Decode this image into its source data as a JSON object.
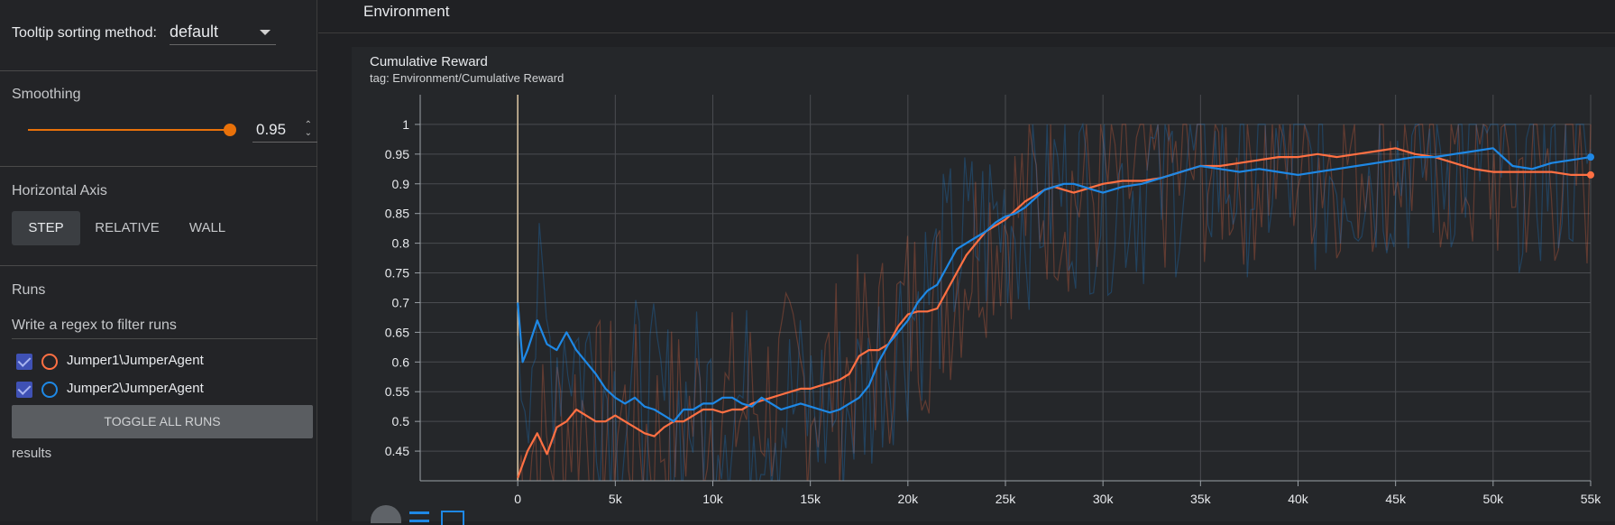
{
  "sidebar": {
    "tooltip_label": "Tooltip sorting method:",
    "tooltip_value": "default",
    "smoothing_label": "Smoothing",
    "smoothing_value": "0.95",
    "smoothing_fraction": 0.95,
    "horizontal_axis_label": "Horizontal Axis",
    "axis_options": [
      "STEP",
      "RELATIVE",
      "WALL"
    ],
    "axis_selected": "STEP",
    "runs_label": "Runs",
    "filter_placeholder": "Write a regex to filter runs",
    "runs": [
      {
        "name": "Jumper1\\JumperAgent",
        "color": "#ff7043",
        "checked": true
      },
      {
        "name": "Jumper2\\JumperAgent",
        "color": "#1e88e5",
        "checked": true
      }
    ],
    "toggle_label": "TOGGLE ALL RUNS",
    "results_label": "results"
  },
  "main": {
    "section_title": "Environment"
  },
  "chart_data": {
    "type": "line",
    "title": "Cumulative Reward",
    "subtitle": "tag: Environment/Cumulative Reward",
    "xlim": [
      -5000,
      55000
    ],
    "ylim": [
      0.4,
      1.05
    ],
    "x_ticks": [
      0,
      5000,
      10000,
      15000,
      20000,
      25000,
      30000,
      35000,
      40000,
      45000,
      50000,
      55000
    ],
    "x_tick_labels": [
      "0",
      "5k",
      "10k",
      "15k",
      "20k",
      "25k",
      "30k",
      "35k",
      "40k",
      "45k",
      "50k",
      "55k"
    ],
    "y_ticks": [
      0.45,
      0.5,
      0.55,
      0.6,
      0.65,
      0.7,
      0.75,
      0.8,
      0.85,
      0.9,
      0.95,
      1
    ],
    "y_tick_labels": [
      "0.45",
      "0.5",
      "0.55",
      "0.6",
      "0.65",
      "0.7",
      "0.75",
      "0.8",
      "0.85",
      "0.9",
      "0.95",
      "1"
    ],
    "grid": true,
    "series": [
      {
        "name": "Jumper1\\JumperAgent",
        "color": "#ff7043",
        "x": [
          0,
          500,
          1000,
          1500,
          2000,
          2500,
          3000,
          3500,
          4000,
          4500,
          5000,
          5500,
          6000,
          6500,
          7000,
          7500,
          8000,
          8500,
          9000,
          9500,
          10000,
          10500,
          11000,
          11500,
          12000,
          12500,
          13000,
          13500,
          14000,
          14500,
          15000,
          15500,
          16000,
          16500,
          17000,
          17500,
          18000,
          18500,
          19000,
          19500,
          20000,
          20500,
          21000,
          21500,
          22000,
          22500,
          23000,
          23500,
          24000,
          24500,
          25000,
          25500,
          26000,
          26500,
          27000,
          27500,
          28000,
          28500,
          29000,
          29500,
          30000,
          31000,
          32000,
          33000,
          34000,
          35000,
          36000,
          37000,
          38000,
          39000,
          40000,
          41000,
          42000,
          43000,
          44000,
          45000,
          46000,
          47000,
          48000,
          49000,
          50000,
          51000,
          52000,
          53000,
          54000,
          55000
        ],
        "values": [
          0.405,
          0.45,
          0.48,
          0.445,
          0.49,
          0.5,
          0.52,
          0.51,
          0.5,
          0.5,
          0.51,
          0.5,
          0.49,
          0.48,
          0.475,
          0.49,
          0.5,
          0.5,
          0.51,
          0.52,
          0.52,
          0.515,
          0.52,
          0.52,
          0.53,
          0.535,
          0.54,
          0.545,
          0.55,
          0.555,
          0.555,
          0.56,
          0.565,
          0.57,
          0.58,
          0.61,
          0.62,
          0.62,
          0.63,
          0.66,
          0.68,
          0.685,
          0.685,
          0.69,
          0.72,
          0.75,
          0.78,
          0.8,
          0.82,
          0.83,
          0.84,
          0.855,
          0.87,
          0.88,
          0.89,
          0.895,
          0.89,
          0.885,
          0.89,
          0.895,
          0.9,
          0.905,
          0.905,
          0.91,
          0.92,
          0.93,
          0.93,
          0.935,
          0.94,
          0.945,
          0.945,
          0.95,
          0.945,
          0.95,
          0.955,
          0.96,
          0.95,
          0.945,
          0.935,
          0.925,
          0.92,
          0.92,
          0.92,
          0.92,
          0.915,
          0.915
        ]
      },
      {
        "name": "Jumper2\\JumperAgent",
        "color": "#1e88e5",
        "x": [
          0,
          250,
          500,
          1000,
          1500,
          2000,
          2500,
          3000,
          3500,
          4000,
          4500,
          5000,
          5500,
          6000,
          6500,
          7000,
          7500,
          8000,
          8500,
          9000,
          9500,
          10000,
          10500,
          11000,
          11500,
          12000,
          12500,
          13000,
          13500,
          14000,
          14500,
          15000,
          15500,
          16000,
          16500,
          17000,
          17500,
          18000,
          18500,
          19000,
          19500,
          20000,
          20500,
          21000,
          21500,
          22000,
          22500,
          23000,
          23500,
          24000,
          24500,
          25000,
          25500,
          26000,
          26500,
          27000,
          27500,
          28000,
          28500,
          29000,
          29500,
          30000,
          31000,
          32000,
          33000,
          34000,
          35000,
          36000,
          37000,
          38000,
          39000,
          40000,
          41000,
          42000,
          43000,
          44000,
          45000,
          46000,
          47000,
          48000,
          49000,
          50000,
          51000,
          52000,
          53000,
          54000,
          55000
        ],
        "values": [
          0.7,
          0.6,
          0.62,
          0.67,
          0.63,
          0.62,
          0.65,
          0.62,
          0.6,
          0.58,
          0.555,
          0.54,
          0.53,
          0.54,
          0.525,
          0.52,
          0.51,
          0.5,
          0.52,
          0.52,
          0.53,
          0.53,
          0.54,
          0.54,
          0.53,
          0.525,
          0.54,
          0.53,
          0.52,
          0.525,
          0.53,
          0.525,
          0.52,
          0.515,
          0.52,
          0.53,
          0.54,
          0.56,
          0.6,
          0.63,
          0.65,
          0.67,
          0.7,
          0.72,
          0.73,
          0.76,
          0.79,
          0.8,
          0.81,
          0.82,
          0.835,
          0.845,
          0.85,
          0.86,
          0.875,
          0.89,
          0.895,
          0.9,
          0.9,
          0.895,
          0.89,
          0.885,
          0.895,
          0.9,
          0.91,
          0.92,
          0.93,
          0.925,
          0.92,
          0.925,
          0.92,
          0.915,
          0.92,
          0.925,
          0.93,
          0.935,
          0.94,
          0.945,
          0.945,
          0.95,
          0.955,
          0.96,
          0.93,
          0.925,
          0.935,
          0.94,
          0.945
        ]
      }
    ]
  }
}
